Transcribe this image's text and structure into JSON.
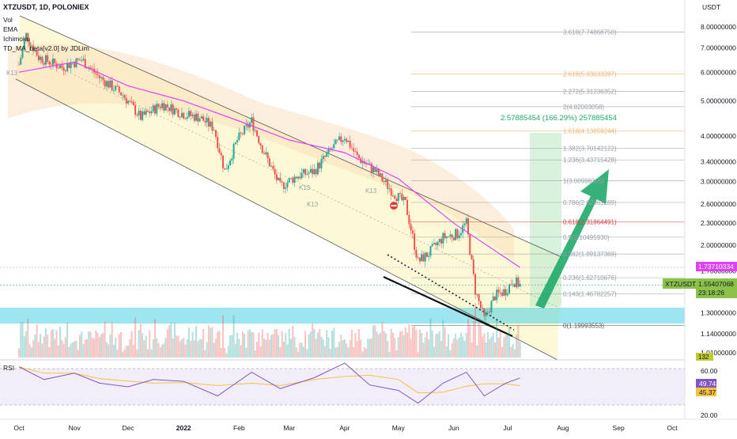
{
  "header": {
    "title": "XTZUSDT, 1D, POLONIEX",
    "indicators": [
      "Vol",
      "EMA",
      "Ichimoku",
      "TD_MA_beta[v2.0] by JDLim"
    ]
  },
  "price_axis": {
    "currency": "USDT",
    "ticks": [
      "8.00000000",
      "7.00000000",
      "6.00000000",
      "5.00000000",
      "4.00000000",
      "3.40000000",
      "3.00000000",
      "2.60000000",
      "2.30000000",
      "2.00000000",
      "1.70000000",
      "1.30000000",
      "1.14000000",
      "1.01000000"
    ],
    "current_price_label": "1.55407068",
    "countdown_label": "23:18:26",
    "ema_label": "1.73710334",
    "symbol_label": "XTZUSDT",
    "volume_label": "132"
  },
  "time_axis": {
    "labels": [
      "Oct",
      "Nov",
      "Dec",
      "2022",
      "Feb",
      "Mar",
      "Apr",
      "May",
      "Jun",
      "Jul",
      "Aug",
      "Sep",
      "Oct"
    ]
  },
  "fib_levels": [
    {
      "label": "3.618(7.74868750)",
      "color": "#9aa0a6"
    },
    {
      "label": "2.618(5.93033397)",
      "color": "#f7b26a"
    },
    {
      "label": "2.272(5.31236352)",
      "color": "#9aa0a6"
    },
    {
      "label": "2(4.82003058)",
      "color": "#9aa0a6"
    },
    {
      "label": "1.618(4.13659244)",
      "color": "#f7b26a"
    },
    {
      "label": "1.382(3.70142122)",
      "color": "#9aa0a6"
    },
    {
      "label": "1.236(3.43715428)",
      "color": "#9aa0a6"
    },
    {
      "label": "1(3.00998306)",
      "color": "#9aa0a6"
    },
    {
      "label": "0.786(2.62361289)",
      "color": "#9aa0a6"
    },
    {
      "label": "0.618(2.31864491)",
      "color": "#d94040"
    },
    {
      "label": "0.5(2.10495930)",
      "color": "#9aa0a6"
    },
    {
      "label": "0.382(1.89137369)",
      "color": "#9aa0a6"
    },
    {
      "label": "0.236(1.62710676)",
      "color": "#9aa0a6"
    },
    {
      "label": "0.143(1.46782257)",
      "color": "#9aa0a6"
    },
    {
      "label": "0(1.19993553)",
      "color": "#555555"
    }
  ],
  "annotations": {
    "target": "2.57885454 (166.29%) 257885454",
    "ichimoku_marks": [
      "K13",
      "K13",
      "K13",
      "K13"
    ]
  },
  "rsi": {
    "title": "RSI",
    "ticks": [
      "60.00",
      "20.00"
    ],
    "value_label": "49.74",
    "ma_label": "45.37"
  },
  "colors": {
    "up": "#26a69a",
    "down": "#ef5350",
    "ema": "#e040fb",
    "support_zone": "#4dd0e1",
    "arrow": "#1faa6b",
    "target_text": "#1faa6b",
    "current_price_bg": "#8bc34a",
    "ema_label_bg": "#e040fb",
    "rsi_line": "#7e57c2",
    "rsi_ma": "#f5c242"
  },
  "chart_data": {
    "type": "candlestick",
    "title": "XTZUSDT, 1D, POLONIEX",
    "y_scale": "log",
    "ylim": [
      1.01,
      8.0
    ],
    "x_range": [
      "2021-10",
      "2022-10"
    ],
    "price_path": [
      {
        "date": "2021-10-01",
        "close": 6.3
      },
      {
        "date": "2021-10-05",
        "close": 7.6
      },
      {
        "date": "2021-10-12",
        "close": 6.6
      },
      {
        "date": "2021-10-25",
        "close": 6.2
      },
      {
        "date": "2021-11-05",
        "close": 6.5
      },
      {
        "date": "2021-11-15",
        "close": 5.8
      },
      {
        "date": "2021-11-28",
        "close": 5.2
      },
      {
        "date": "2021-12-08",
        "close": 4.5
      },
      {
        "date": "2021-12-20",
        "close": 4.9
      },
      {
        "date": "2022-01-01",
        "close": 4.6
      },
      {
        "date": "2022-01-10",
        "close": 4.5
      },
      {
        "date": "2022-01-18",
        "close": 4.2
      },
      {
        "date": "2022-01-24",
        "close": 3.2
      },
      {
        "date": "2022-01-31",
        "close": 3.9
      },
      {
        "date": "2022-02-08",
        "close": 4.4
      },
      {
        "date": "2022-02-14",
        "close": 3.7
      },
      {
        "date": "2022-02-24",
        "close": 2.9
      },
      {
        "date": "2022-03-05",
        "close": 3.1
      },
      {
        "date": "2022-03-15",
        "close": 3.2
      },
      {
        "date": "2022-03-25",
        "close": 3.7
      },
      {
        "date": "2022-04-01",
        "close": 4.0
      },
      {
        "date": "2022-04-08",
        "close": 3.5
      },
      {
        "date": "2022-04-18",
        "close": 3.2
      },
      {
        "date": "2022-04-28",
        "close": 2.8
      },
      {
        "date": "2022-05-05",
        "close": 2.6
      },
      {
        "date": "2022-05-12",
        "close": 1.8
      },
      {
        "date": "2022-05-18",
        "close": 1.9
      },
      {
        "date": "2022-05-26",
        "close": 2.1
      },
      {
        "date": "2022-06-03",
        "close": 2.15
      },
      {
        "date": "2022-06-08",
        "close": 2.3
      },
      {
        "date": "2022-06-13",
        "close": 1.5
      },
      {
        "date": "2022-06-18",
        "close": 1.25
      },
      {
        "date": "2022-06-24",
        "close": 1.45
      },
      {
        "date": "2022-06-30",
        "close": 1.5
      },
      {
        "date": "2022-07-04",
        "close": 1.6
      },
      {
        "date": "2022-07-08",
        "close": 1.554
      }
    ],
    "ema_path": [
      {
        "date": "2021-10-01",
        "value": 6.0
      },
      {
        "date": "2021-11-01",
        "value": 6.4
      },
      {
        "date": "2021-12-01",
        "value": 5.5
      },
      {
        "date": "2022-01-01",
        "value": 5.0
      },
      {
        "date": "2022-02-01",
        "value": 4.4
      },
      {
        "date": "2022-03-01",
        "value": 3.9
      },
      {
        "date": "2022-04-01",
        "value": 3.6
      },
      {
        "date": "2022-05-01",
        "value": 3.05
      },
      {
        "date": "2022-06-01",
        "value": 2.3
      },
      {
        "date": "2022-07-08",
        "value": 1.737
      }
    ],
    "last_close": 1.55407068,
    "projection": {
      "target_price": 2.57885454,
      "change_percent": 166.29
    },
    "rsi_values": [
      {
        "date": "2021-10-01",
        "value": 62
      },
      {
        "date": "2021-10-15",
        "value": 48
      },
      {
        "date": "2021-11-01",
        "value": 55
      },
      {
        "date": "2021-11-15",
        "value": 44
      },
      {
        "date": "2021-12-01",
        "value": 40
      },
      {
        "date": "2021-12-15",
        "value": 48
      },
      {
        "date": "2022-01-01",
        "value": 46
      },
      {
        "date": "2022-01-20",
        "value": 30
      },
      {
        "date": "2022-02-08",
        "value": 56
      },
      {
        "date": "2022-02-24",
        "value": 38
      },
      {
        "date": "2022-03-15",
        "value": 50
      },
      {
        "date": "2022-04-01",
        "value": 66
      },
      {
        "date": "2022-04-15",
        "value": 42
      },
      {
        "date": "2022-05-01",
        "value": 36
      },
      {
        "date": "2022-05-12",
        "value": 22
      },
      {
        "date": "2022-05-26",
        "value": 44
      },
      {
        "date": "2022-06-08",
        "value": 56
      },
      {
        "date": "2022-06-18",
        "value": 30
      },
      {
        "date": "2022-06-30",
        "value": 44
      },
      {
        "date": "2022-07-08",
        "value": 49.74
      }
    ]
  }
}
